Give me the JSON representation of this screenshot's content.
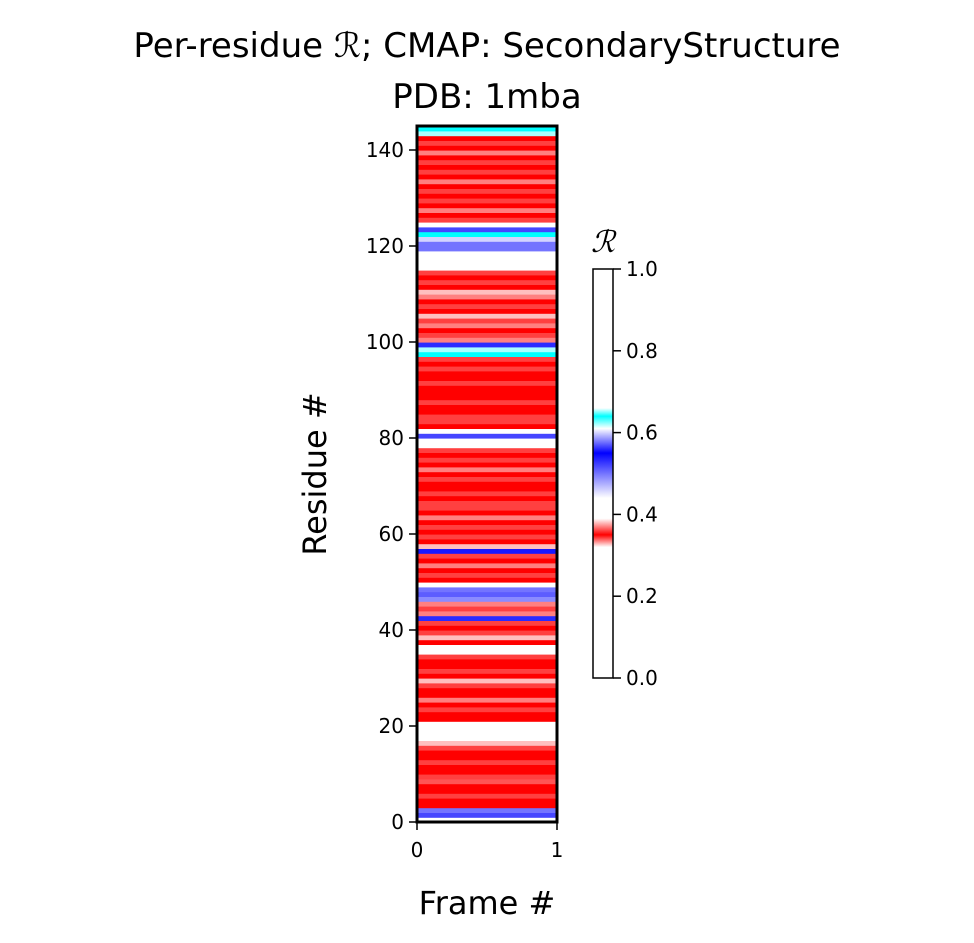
{
  "chart_data": {
    "type": "heatmap",
    "title": "Per-residue ℛ; CMAP: SecondaryStructure",
    "subtitle": "PDB: 1mba",
    "xlabel": "Frame #",
    "ylabel": "Residue #",
    "xlim": [
      0,
      1
    ],
    "ylim": [
      0,
      145
    ],
    "xticks": [
      "0",
      "1"
    ],
    "yticks": [
      "0",
      "20",
      "40",
      "60",
      "80",
      "100",
      "120",
      "140"
    ],
    "colorbar": {
      "label": "ℛ",
      "range": [
        0,
        1
      ],
      "ticks": [
        "0.0",
        "0.2",
        "0.4",
        "0.6",
        "0.8",
        "1.0"
      ]
    },
    "residue_values": [
      0.8,
      0.52,
      0.5,
      0.35,
      0.35,
      0.36,
      0.35,
      0.35,
      0.34,
      0.36,
      0.35,
      0.35,
      0.36,
      0.35,
      0.35,
      0.36,
      0.38,
      0.39,
      0.39,
      0.4,
      0.8,
      0.35,
      0.35,
      0.36,
      0.35,
      0.37,
      0.35,
      0.35,
      0.36,
      0.38,
      0.35,
      0.36,
      0.35,
      0.35,
      0.36,
      0.8,
      0.4,
      0.35,
      0.38,
      0.36,
      0.35,
      0.36,
      0.56,
      0.37,
      0.36,
      0.37,
      0.49,
      0.51,
      0.5,
      0.8,
      0.35,
      0.36,
      0.35,
      0.37,
      0.35,
      0.36,
      0.54,
      0.38,
      0.35,
      0.36,
      0.35,
      0.36,
      0.35,
      0.37,
      0.35,
      0.36,
      0.36,
      0.35,
      0.36,
      0.35,
      0.35,
      0.36,
      0.35,
      0.37,
      0.35,
      0.36,
      0.35,
      0.36,
      0.41,
      0.8,
      0.52,
      0.39,
      0.35,
      0.36,
      0.36,
      0.35,
      0.35,
      0.36,
      0.35,
      0.35,
      0.35,
      0.36,
      0.35,
      0.35,
      0.36,
      0.35,
      0.36,
      0.64,
      0.62,
      0.56,
      0.37,
      0.36,
      0.35,
      0.37,
      0.36,
      0.38,
      0.35,
      0.36,
      0.35,
      0.37,
      0.38,
      0.35,
      0.36,
      0.35,
      0.36,
      0.8,
      0.4,
      0.41,
      0.8,
      0.5,
      0.5,
      0.6,
      0.64,
      0.52,
      0.8,
      0.36,
      0.35,
      0.37,
      0.35,
      0.36,
      0.35,
      0.36,
      0.35,
      0.37,
      0.35,
      0.36,
      0.35,
      0.36,
      0.35,
      0.37,
      0.35,
      0.36,
      0.35,
      0.62,
      0.64
    ]
  }
}
